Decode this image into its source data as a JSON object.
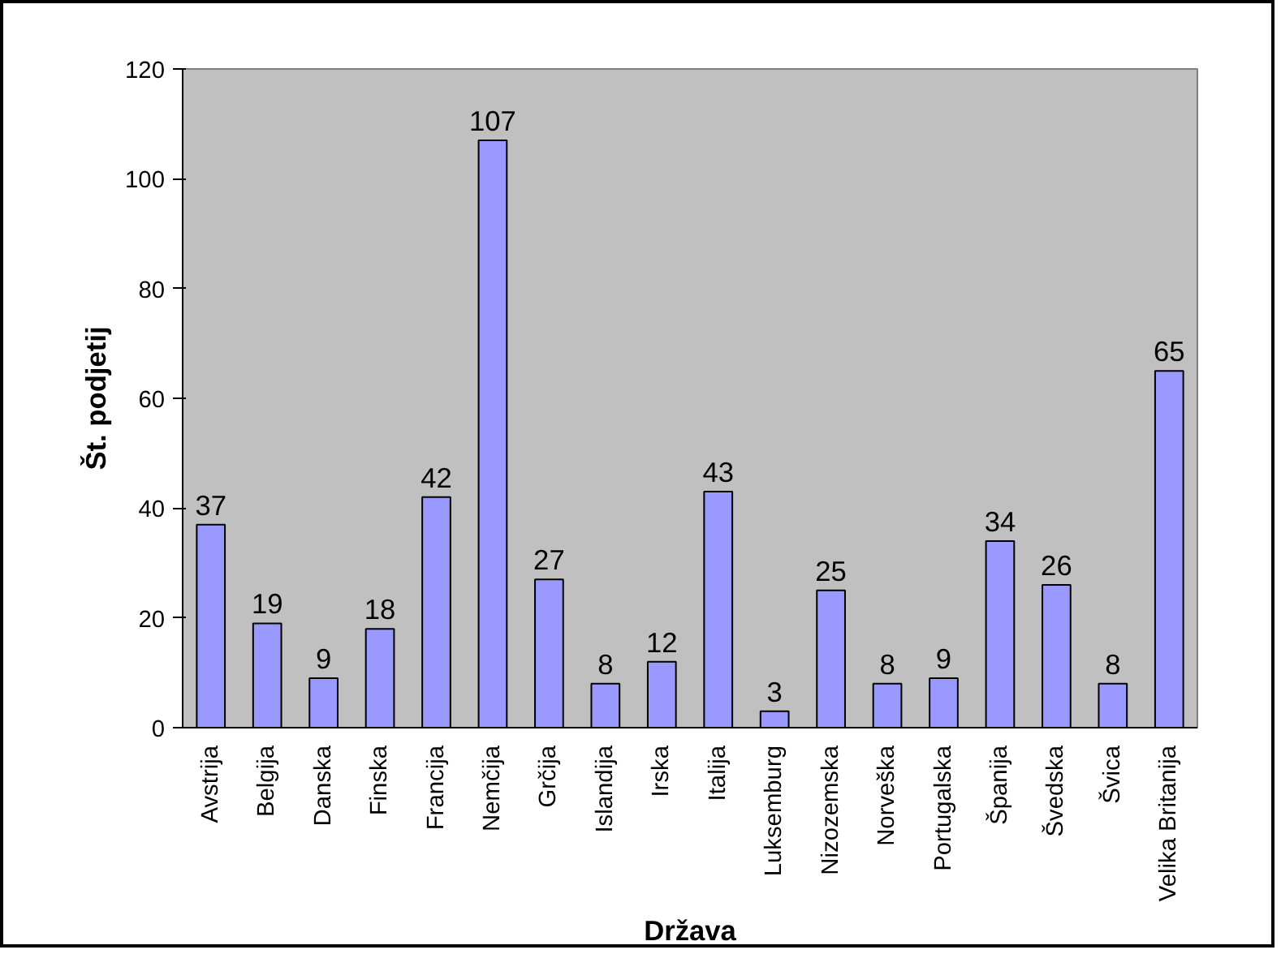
{
  "chart_data": {
    "type": "bar",
    "xlabel": "Država",
    "ylabel": "Št. podjetij",
    "categories": [
      "Avstrija",
      "Belgija",
      "Danska",
      "Finska",
      "Francija",
      "Nemčija",
      "Grčija",
      "Islandija",
      "Irska",
      "Italija",
      "Luksemburg",
      "Nizozemska",
      "Norveška",
      "Portugalska",
      "Španija",
      "Švedska",
      "Švica",
      "Velika Britanija"
    ],
    "values": [
      37,
      19,
      9,
      18,
      42,
      107,
      27,
      8,
      12,
      43,
      3,
      25,
      8,
      9,
      34,
      26,
      8,
      65
    ],
    "color": "#9999ff",
    "ylim": [
      0,
      120
    ],
    "yticks": [
      0,
      20,
      40,
      60,
      80,
      100,
      120
    ],
    "grid": false,
    "data_labels": true
  }
}
